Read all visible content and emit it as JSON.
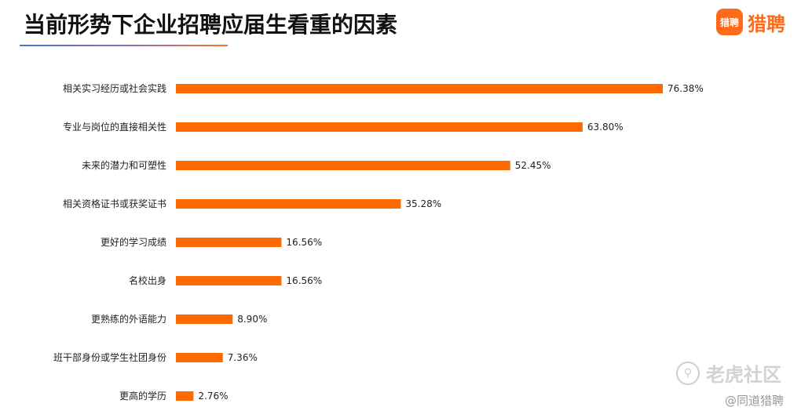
{
  "header": {
    "title": "当前形势下企业招聘应届生看重的因素",
    "logo_badge": "猎聘",
    "logo_text": "猎聘"
  },
  "watermark": {
    "text": "老虎社区",
    "icon": "tiger-community-icon",
    "credit": "@同道猎聘"
  },
  "colors": {
    "bar": "#ff6a00",
    "brand": "#ff6a1a"
  },
  "chart_data": {
    "type": "bar",
    "orientation": "horizontal",
    "title": "当前形势下企业招聘应届生看重的因素",
    "categories": [
      "相关实习经历或社会实践",
      "专业与岗位的直接相关性",
      "未来的潜力和可塑性",
      "相关资格证书或获奖证书",
      "更好的学习成绩",
      "名校出身",
      "更熟练的外语能力",
      "班干部身份或学生社团身份",
      "更高的学历"
    ],
    "values": [
      76.38,
      63.8,
      52.45,
      35.28,
      16.56,
      16.56,
      8.9,
      7.36,
      2.76
    ],
    "value_labels": [
      "76.38%",
      "63.80%",
      "52.45%",
      "35.28%",
      "16.56%",
      "16.56%",
      "8.90%",
      "7.36%",
      "2.76%"
    ],
    "unit": "%",
    "xlim": [
      0,
      100
    ],
    "grid": false,
    "legend": "none"
  }
}
